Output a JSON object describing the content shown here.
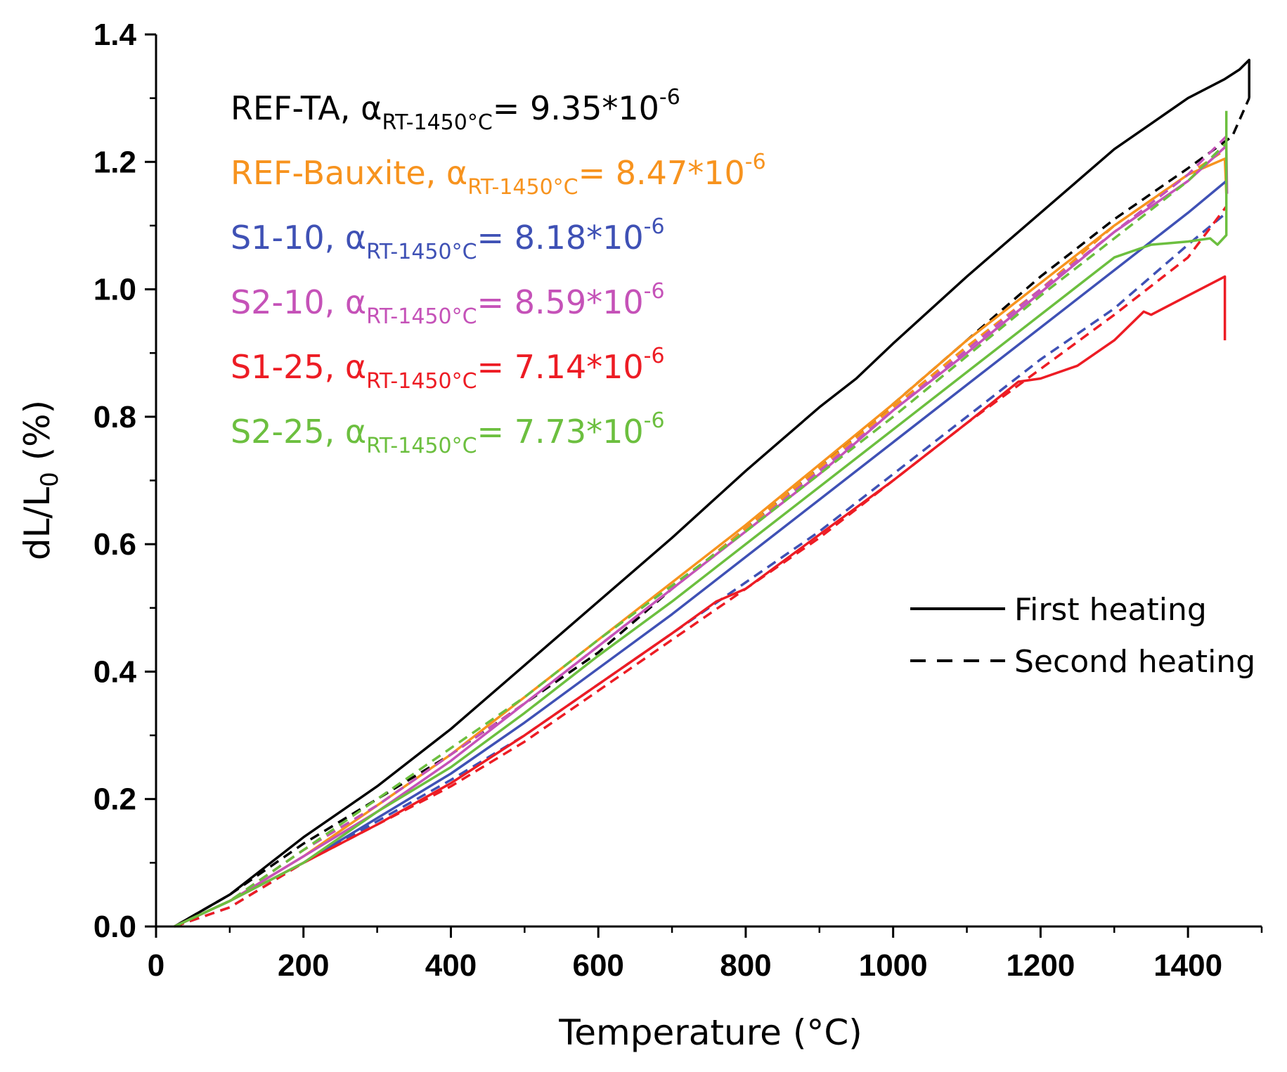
{
  "chart_data": {
    "type": "line",
    "xlabel": "Temperature (°C)",
    "ylabel_main": "dL/L",
    "ylabel_sub": "0",
    "ylabel_tail": " (%)",
    "xlim": [
      0,
      1500
    ],
    "ylim": [
      0,
      1.4
    ],
    "x_ticks": [
      0,
      200,
      400,
      600,
      800,
      1000,
      1200,
      1400
    ],
    "y_ticks": [
      0.0,
      0.2,
      0.4,
      0.6,
      0.8,
      1.0,
      1.2,
      1.4
    ],
    "x_tick_labels": [
      "0",
      "200",
      "400",
      "600",
      "800",
      "1000",
      "1200",
      "1400"
    ],
    "y_tick_labels": [
      "0.0",
      "0.2",
      "0.4",
      "0.6",
      "0.8",
      "1.0",
      "1.2",
      "1.4"
    ],
    "grid": false,
    "legend": {
      "placement": "right",
      "entries": [
        {
          "label": "First heating",
          "style": "solid"
        },
        {
          "label": "Second heating",
          "style": "dashed"
        }
      ]
    },
    "annotations": [
      {
        "name": "REF-TA",
        "prefix": "REF-TA, ",
        "alpha": "α",
        "sub": "RT-1450°C",
        "eq": "= 9.35*10",
        "sup": "-6",
        "color": "#000000"
      },
      {
        "name": "REF-Bauxite",
        "prefix": "REF-Bauxite, ",
        "alpha": "α",
        "sub": "RT-1450°C",
        "eq": "= 8.47*10",
        "sup": "-6",
        "color": "#f7931e"
      },
      {
        "name": "S1-10",
        "prefix": "S1-10, ",
        "alpha": "α",
        "sub": "RT-1450°C",
        "eq": "= 8.18*10",
        "sup": "-6",
        "color": "#3f51b5"
      },
      {
        "name": "S2-10",
        "prefix": "S2-10, ",
        "alpha": "α",
        "sub": "RT-1450°C",
        "eq": "= 8.59*10",
        "sup": "-6",
        "color": "#c552b8"
      },
      {
        "name": "S1-25",
        "prefix": "S1-25, ",
        "alpha": "α",
        "sub": "RT-1450°C",
        "eq": "= 7.14*10",
        "sup": "-6",
        "color": "#ed1c24"
      },
      {
        "name": "S2-25",
        "prefix": "S2-25, ",
        "alpha": "α",
        "sub": "RT-1450°C",
        "eq": "= 7.73*10",
        "sup": "-6",
        "color": "#6cbf3f"
      }
    ],
    "series": [
      {
        "sample": "REF-TA",
        "heating": "first",
        "color": "#000000",
        "dashed": false,
        "points": [
          [
            25,
            0
          ],
          [
            100,
            0.05
          ],
          [
            200,
            0.14
          ],
          [
            300,
            0.22
          ],
          [
            400,
            0.31
          ],
          [
            500,
            0.41
          ],
          [
            600,
            0.51
          ],
          [
            700,
            0.61
          ],
          [
            800,
            0.715
          ],
          [
            900,
            0.815
          ],
          [
            950,
            0.86
          ],
          [
            1000,
            0.915
          ],
          [
            1100,
            1.02
          ],
          [
            1200,
            1.12
          ],
          [
            1300,
            1.22
          ],
          [
            1350,
            1.26
          ],
          [
            1400,
            1.3
          ],
          [
            1450,
            1.33
          ],
          [
            1470,
            1.345
          ],
          [
            1483,
            1.36
          ],
          [
            1483,
            1.3
          ]
        ]
      },
      {
        "sample": "REF-TA",
        "heating": "second",
        "color": "#000000",
        "dashed": true,
        "points": [
          [
            25,
            0
          ],
          [
            100,
            0.05
          ],
          [
            200,
            0.13
          ],
          [
            300,
            0.2
          ],
          [
            400,
            0.27
          ],
          [
            500,
            0.35
          ],
          [
            600,
            0.43
          ],
          [
            700,
            0.53
          ],
          [
            800,
            0.625
          ],
          [
            900,
            0.72
          ],
          [
            1000,
            0.82
          ],
          [
            1100,
            0.92
          ],
          [
            1200,
            1.02
          ],
          [
            1300,
            1.11
          ],
          [
            1400,
            1.19
          ],
          [
            1460,
            1.24
          ],
          [
            1483,
            1.3
          ]
        ]
      },
      {
        "sample": "REF-Bauxite",
        "heating": "first",
        "color": "#f7931e",
        "dashed": false,
        "points": [
          [
            25,
            0
          ],
          [
            100,
            0.04
          ],
          [
            200,
            0.11
          ],
          [
            300,
            0.19
          ],
          [
            400,
            0.27
          ],
          [
            500,
            0.36
          ],
          [
            600,
            0.45
          ],
          [
            700,
            0.54
          ],
          [
            800,
            0.63
          ],
          [
            900,
            0.725
          ],
          [
            1000,
            0.82
          ],
          [
            1100,
            0.92
          ],
          [
            1200,
            1.01
          ],
          [
            1300,
            1.1
          ],
          [
            1400,
            1.18
          ],
          [
            1450,
            1.205
          ],
          [
            1452,
            1.15
          ]
        ]
      },
      {
        "sample": "REF-Bauxite",
        "heating": "second",
        "color": "#f7931e",
        "dashed": true,
        "points": [
          [
            25,
            0
          ],
          [
            100,
            0.04
          ],
          [
            200,
            0.12
          ],
          [
            300,
            0.19
          ],
          [
            400,
            0.27
          ],
          [
            500,
            0.35
          ],
          [
            600,
            0.44
          ],
          [
            700,
            0.53
          ],
          [
            800,
            0.625
          ],
          [
            900,
            0.72
          ],
          [
            1000,
            0.815
          ],
          [
            1100,
            0.91
          ],
          [
            1200,
            1.0
          ],
          [
            1300,
            1.1
          ],
          [
            1400,
            1.18
          ],
          [
            1452,
            1.22
          ]
        ]
      },
      {
        "sample": "S1-10",
        "heating": "first",
        "color": "#3f51b5",
        "dashed": false,
        "points": [
          [
            25,
            0
          ],
          [
            100,
            0.04
          ],
          [
            200,
            0.1
          ],
          [
            300,
            0.17
          ],
          [
            400,
            0.24
          ],
          [
            500,
            0.32
          ],
          [
            600,
            0.405
          ],
          [
            700,
            0.49
          ],
          [
            800,
            0.58
          ],
          [
            900,
            0.67
          ],
          [
            1000,
            0.76
          ],
          [
            1100,
            0.85
          ],
          [
            1200,
            0.94
          ],
          [
            1300,
            1.03
          ],
          [
            1400,
            1.12
          ],
          [
            1452,
            1.17
          ]
        ]
      },
      {
        "sample": "S1-10",
        "heating": "second",
        "color": "#3f51b5",
        "dashed": true,
        "points": [
          [
            25,
            0
          ],
          [
            100,
            0.03
          ],
          [
            200,
            0.1
          ],
          [
            300,
            0.165
          ],
          [
            400,
            0.23
          ],
          [
            500,
            0.3
          ],
          [
            600,
            0.38
          ],
          [
            700,
            0.46
          ],
          [
            800,
            0.54
          ],
          [
            900,
            0.62
          ],
          [
            1000,
            0.71
          ],
          [
            1100,
            0.8
          ],
          [
            1200,
            0.89
          ],
          [
            1300,
            0.97
          ],
          [
            1400,
            1.07
          ],
          [
            1452,
            1.12
          ]
        ]
      },
      {
        "sample": "S2-10",
        "heating": "first",
        "color": "#c552b8",
        "dashed": false,
        "points": [
          [
            25,
            0
          ],
          [
            100,
            0.04
          ],
          [
            200,
            0.11
          ],
          [
            300,
            0.18
          ],
          [
            400,
            0.26
          ],
          [
            500,
            0.35
          ],
          [
            600,
            0.44
          ],
          [
            700,
            0.53
          ],
          [
            800,
            0.62
          ],
          [
            900,
            0.71
          ],
          [
            1000,
            0.81
          ],
          [
            1100,
            0.9
          ],
          [
            1200,
            0.995
          ],
          [
            1300,
            1.09
          ],
          [
            1400,
            1.17
          ],
          [
            1452,
            1.225
          ],
          [
            1453,
            1.15
          ]
        ]
      },
      {
        "sample": "S2-10",
        "heating": "second",
        "color": "#c552b8",
        "dashed": true,
        "points": [
          [
            25,
            0
          ],
          [
            100,
            0.04
          ],
          [
            200,
            0.12
          ],
          [
            300,
            0.19
          ],
          [
            400,
            0.27
          ],
          [
            500,
            0.35
          ],
          [
            600,
            0.44
          ],
          [
            700,
            0.53
          ],
          [
            800,
            0.62
          ],
          [
            900,
            0.715
          ],
          [
            1000,
            0.81
          ],
          [
            1100,
            0.905
          ],
          [
            1200,
            1.0
          ],
          [
            1300,
            1.09
          ],
          [
            1400,
            1.18
          ],
          [
            1452,
            1.24
          ]
        ]
      },
      {
        "sample": "S1-25",
        "heating": "first",
        "color": "#ed1c24",
        "dashed": false,
        "points": [
          [
            25,
            0
          ],
          [
            100,
            0.04
          ],
          [
            200,
            0.1
          ],
          [
            300,
            0.16
          ],
          [
            400,
            0.225
          ],
          [
            500,
            0.3
          ],
          [
            600,
            0.38
          ],
          [
            700,
            0.46
          ],
          [
            760,
            0.51
          ],
          [
            800,
            0.53
          ],
          [
            900,
            0.615
          ],
          [
            1000,
            0.7
          ],
          [
            1100,
            0.79
          ],
          [
            1170,
            0.855
          ],
          [
            1200,
            0.86
          ],
          [
            1250,
            0.88
          ],
          [
            1300,
            0.92
          ],
          [
            1340,
            0.965
          ],
          [
            1350,
            0.96
          ],
          [
            1400,
            0.99
          ],
          [
            1450,
            1.02
          ],
          [
            1450,
            0.92
          ]
        ]
      },
      {
        "sample": "S1-25",
        "heating": "second",
        "color": "#ed1c24",
        "dashed": true,
        "points": [
          [
            25,
            0
          ],
          [
            100,
            0.03
          ],
          [
            200,
            0.1
          ],
          [
            300,
            0.16
          ],
          [
            400,
            0.22
          ],
          [
            500,
            0.29
          ],
          [
            600,
            0.37
          ],
          [
            700,
            0.45
          ],
          [
            800,
            0.53
          ],
          [
            900,
            0.61
          ],
          [
            1000,
            0.7
          ],
          [
            1100,
            0.79
          ],
          [
            1200,
            0.875
          ],
          [
            1300,
            0.96
          ],
          [
            1400,
            1.05
          ],
          [
            1452,
            1.13
          ]
        ]
      },
      {
        "sample": "S2-25",
        "heating": "first",
        "color": "#6cbf3f",
        "dashed": false,
        "points": [
          [
            25,
            0
          ],
          [
            100,
            0.04
          ],
          [
            200,
            0.1
          ],
          [
            300,
            0.18
          ],
          [
            400,
            0.25
          ],
          [
            500,
            0.335
          ],
          [
            600,
            0.425
          ],
          [
            700,
            0.51
          ],
          [
            800,
            0.6
          ],
          [
            900,
            0.69
          ],
          [
            1000,
            0.78
          ],
          [
            1100,
            0.87
          ],
          [
            1200,
            0.96
          ],
          [
            1300,
            1.05
          ],
          [
            1350,
            1.07
          ],
          [
            1400,
            1.075
          ],
          [
            1430,
            1.08
          ],
          [
            1440,
            1.07
          ],
          [
            1452,
            1.085
          ],
          [
            1452,
            1.28
          ]
        ]
      },
      {
        "sample": "S2-25",
        "heating": "second",
        "color": "#6cbf3f",
        "dashed": true,
        "points": [
          [
            25,
            0
          ],
          [
            100,
            0.04
          ],
          [
            200,
            0.12
          ],
          [
            300,
            0.2
          ],
          [
            400,
            0.28
          ],
          [
            500,
            0.36
          ],
          [
            600,
            0.45
          ],
          [
            700,
            0.535
          ],
          [
            800,
            0.62
          ],
          [
            900,
            0.71
          ],
          [
            1000,
            0.8
          ],
          [
            1100,
            0.895
          ],
          [
            1200,
            0.99
          ],
          [
            1300,
            1.08
          ],
          [
            1400,
            1.17
          ],
          [
            1452,
            1.23
          ]
        ]
      }
    ]
  }
}
